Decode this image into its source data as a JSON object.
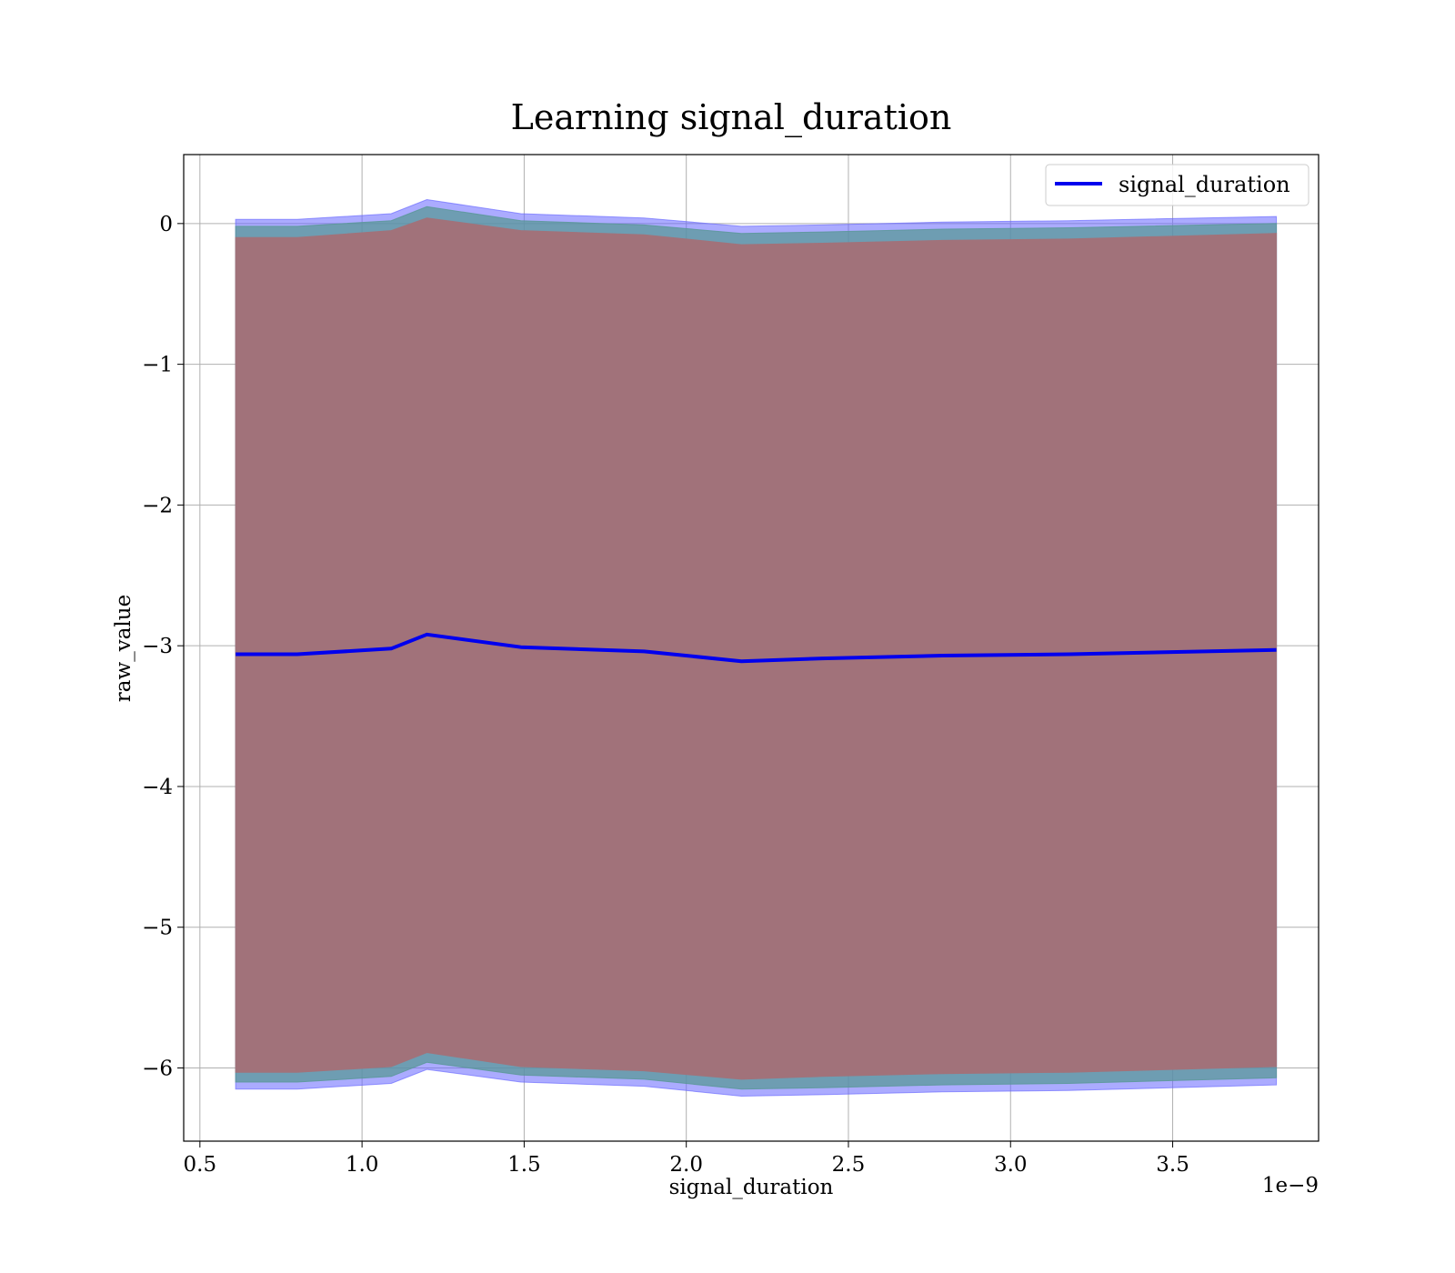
{
  "chart_data": {
    "type": "line",
    "title": "Learning signal_duration",
    "xlabel": "signal_duration",
    "ylabel": "raw_value",
    "x_offset_label": "1e−9",
    "xlim": [
      0.45,
      3.95
    ],
    "ylim": [
      -6.52,
      0.49
    ],
    "grid": true,
    "legend_position": "top-right",
    "x_ticks": [
      {
        "value": 0.5,
        "label": "0.5"
      },
      {
        "value": 1.0,
        "label": "1.0"
      },
      {
        "value": 1.5,
        "label": "1.5"
      },
      {
        "value": 2.0,
        "label": "2.0"
      },
      {
        "value": 2.5,
        "label": "2.5"
      },
      {
        "value": 3.0,
        "label": "3.0"
      },
      {
        "value": 3.5,
        "label": "3.5"
      }
    ],
    "y_ticks": [
      {
        "value": 0,
        "label": "0"
      },
      {
        "value": -1,
        "label": "−1"
      },
      {
        "value": -2,
        "label": "−2"
      },
      {
        "value": -3,
        "label": "−3"
      },
      {
        "value": -4,
        "label": "−4"
      },
      {
        "value": -5,
        "label": "−5"
      },
      {
        "value": -6,
        "label": "−6"
      }
    ],
    "x": [
      0.61,
      0.8,
      1.09,
      1.2,
      1.49,
      1.87,
      2.17,
      2.42,
      2.79,
      3.18,
      3.82
    ],
    "series": [
      {
        "name": "signal_duration",
        "color": "#0000ee",
        "values": [
          -3.06,
          -3.06,
          -3.02,
          -2.92,
          -3.01,
          -3.04,
          -3.11,
          -3.09,
          -3.07,
          -3.06,
          -3.03
        ]
      }
    ],
    "bands": [
      {
        "color": "#6666ff",
        "opacity": 0.55,
        "upper": [
          0.03,
          0.03,
          0.07,
          0.17,
          0.07,
          0.04,
          -0.02,
          -0.01,
          0.01,
          0.02,
          0.05
        ],
        "lower": [
          -6.15,
          -6.15,
          -6.11,
          -6.01,
          -6.1,
          -6.13,
          -6.2,
          -6.19,
          -6.17,
          -6.16,
          -6.12
        ]
      },
      {
        "color": "#5a9898",
        "opacity": 0.75,
        "upper": [
          -0.02,
          -0.02,
          0.02,
          0.12,
          0.02,
          -0.01,
          -0.07,
          -0.06,
          -0.04,
          -0.03,
          0.0
        ],
        "lower": [
          -6.1,
          -6.1,
          -6.06,
          -5.96,
          -6.05,
          -6.08,
          -6.15,
          -6.14,
          -6.12,
          -6.11,
          -6.07
        ]
      },
      {
        "color": "#a1727a",
        "opacity": 1.0,
        "upper": [
          -0.1,
          -0.1,
          -0.05,
          0.04,
          -0.05,
          -0.08,
          -0.15,
          -0.14,
          -0.12,
          -0.11,
          -0.07
        ],
        "lower": [
          -6.03,
          -6.03,
          -5.99,
          -5.89,
          -5.99,
          -6.02,
          -6.08,
          -6.06,
          -6.04,
          -6.03,
          -5.99
        ]
      }
    ]
  }
}
